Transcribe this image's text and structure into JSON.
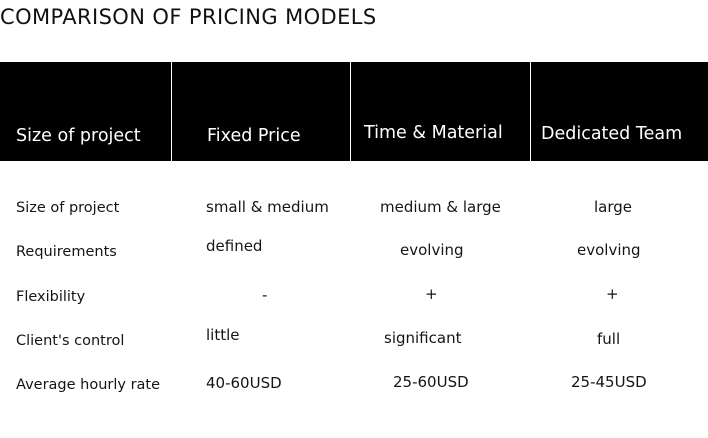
{
  "title": "COMPARISON OF PRICING MODELS",
  "header": [
    "Size of project",
    "Fixed Price",
    "Time & Material",
    "Dedicated Team"
  ],
  "rows": [
    {
      "label": "Size of project",
      "fixed": "small & medium",
      "tm": "medium & large",
      "dedicated": "large"
    },
    {
      "label": "Requirements",
      "fixed": "defined",
      "tm": "evolving",
      "dedicated": "evolving"
    },
    {
      "label": "Flexibility",
      "fixed": "-",
      "tm": "+",
      "dedicated": "+"
    },
    {
      "label": "Client's control",
      "fixed": "little",
      "tm": "significant",
      "dedicated": "full"
    },
    {
      "label": "Average hourly rate",
      "fixed": "40-60USD",
      "tm": "25-60USD",
      "dedicated": "25-45USD"
    }
  ]
}
